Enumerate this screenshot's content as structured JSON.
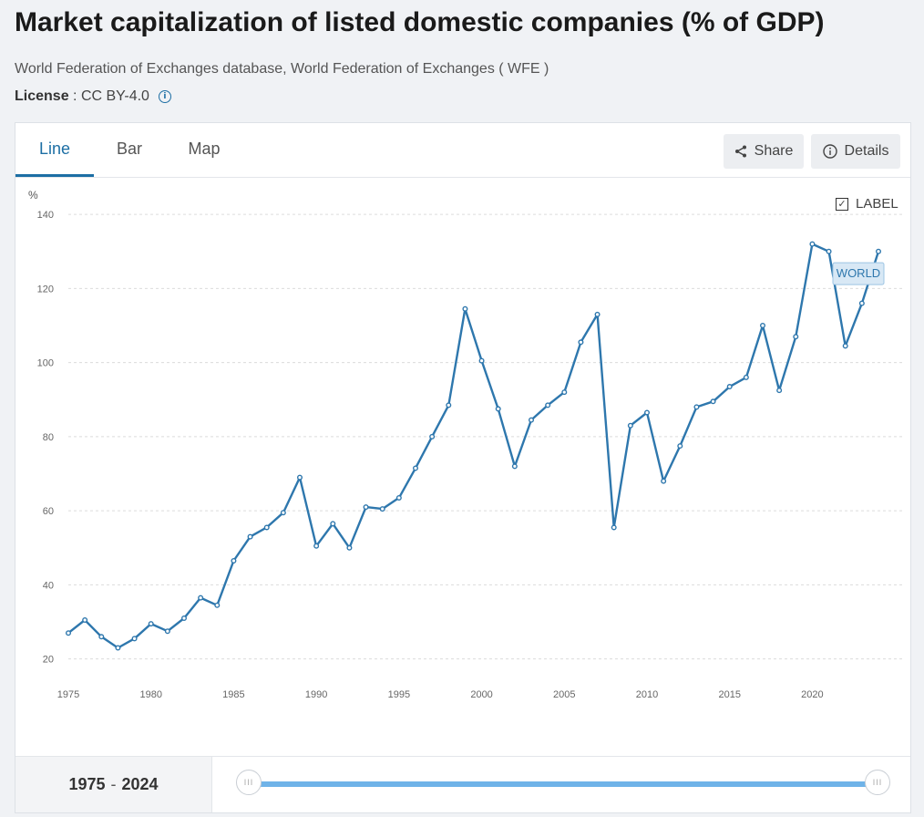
{
  "header": {
    "title": "Market capitalization of listed domestic companies (% of GDP)",
    "source": "World Federation of Exchanges database, World Federation of Exchanges ( WFE )",
    "license_label": "License",
    "license_value": ": CC BY-4.0"
  },
  "tabs": [
    {
      "label": "Line",
      "active": true
    },
    {
      "label": "Bar",
      "active": false
    },
    {
      "label": "Map",
      "active": false
    }
  ],
  "actions": {
    "share_label": "Share",
    "details_label": "Details"
  },
  "label_toggle": {
    "label": "LABEL",
    "checked": true
  },
  "range": {
    "start": "1975",
    "separator": "-",
    "end": "2024"
  },
  "colors": {
    "accent": "#1c6ea4",
    "line": "#2e77ad",
    "slider": "#6fb3e8"
  },
  "chart_data": {
    "type": "line",
    "ylabel": "%",
    "ylim": [
      15,
      142
    ],
    "yticks": [
      20,
      40,
      60,
      80,
      100,
      120,
      140
    ],
    "xlim": [
      1975,
      2024
    ],
    "xticks": [
      1975,
      1980,
      1985,
      1990,
      1995,
      2000,
      2005,
      2010,
      2015,
      2020
    ],
    "grid": true,
    "series": [
      {
        "name": "WORLD",
        "x": [
          1975,
          1976,
          1977,
          1978,
          1979,
          1980,
          1981,
          1982,
          1983,
          1984,
          1985,
          1986,
          1987,
          1988,
          1989,
          1990,
          1991,
          1992,
          1993,
          1994,
          1995,
          1996,
          1997,
          1998,
          1999,
          2000,
          2001,
          2002,
          2003,
          2004,
          2005,
          2006,
          2007,
          2008,
          2009,
          2010,
          2011,
          2012,
          2013,
          2014,
          2015,
          2016,
          2017,
          2018,
          2019,
          2020,
          2021,
          2022,
          2023,
          2024
        ],
        "values": [
          27,
          30.5,
          26,
          23,
          25.5,
          29.5,
          27.5,
          31,
          36.5,
          34.5,
          46.5,
          53,
          55.5,
          59.5,
          69,
          50.5,
          56.5,
          50,
          61,
          60.5,
          63.5,
          71.5,
          80,
          88.5,
          114.5,
          100.5,
          87.5,
          72,
          84.5,
          88.5,
          92,
          105.5,
          113,
          55.5,
          83,
          86.5,
          68,
          77.5,
          88,
          89.5,
          93.5,
          96,
          110,
          92.5,
          107,
          132,
          130,
          104.5,
          116,
          130
        ]
      }
    ]
  }
}
